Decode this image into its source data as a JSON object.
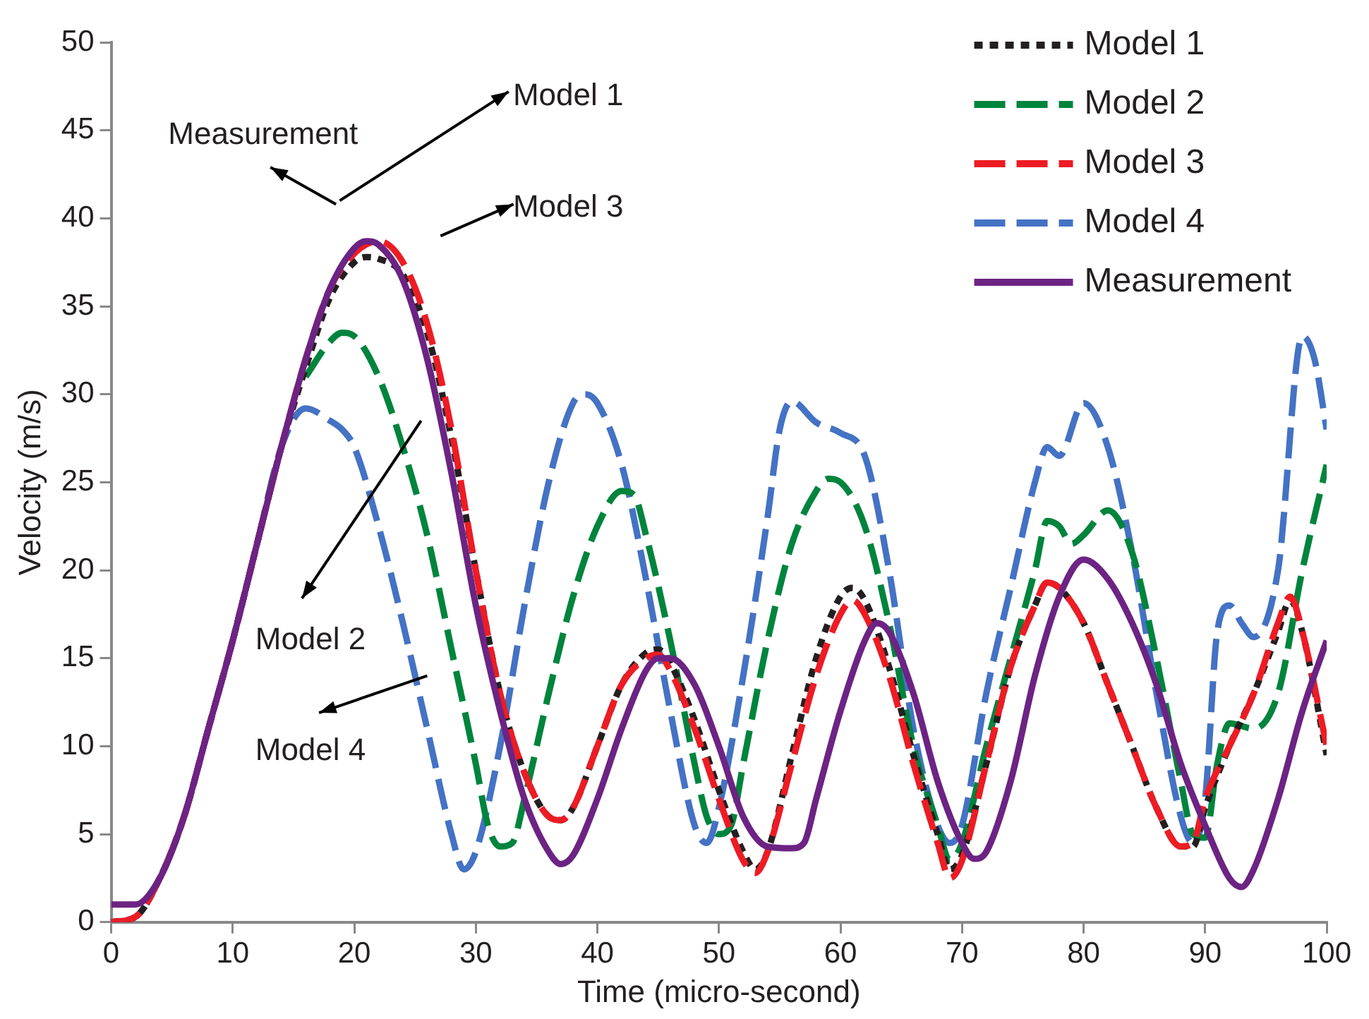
{
  "chart_data": {
    "type": "line",
    "xlabel": "Time (micro-second)",
    "ylabel": "Velocity (m/s)",
    "xlim": [
      0,
      100
    ],
    "xticks": [
      0,
      10,
      20,
      30,
      40,
      50,
      60,
      70,
      80,
      90,
      100
    ],
    "ylim": [
      0,
      50
    ],
    "yticks": [
      0,
      5,
      10,
      15,
      20,
      25,
      30,
      35,
      40,
      45,
      50
    ],
    "grid": false,
    "legend": "top right",
    "marker": "none",
    "series": [
      {
        "name": "Model 1",
        "color": "#231f20",
        "line_style": "dotted",
        "x": [
          0,
          2,
          4,
          6,
          8,
          10,
          12,
          14,
          16,
          18,
          20,
          21,
          22,
          24,
          26,
          28,
          30,
          32,
          34,
          36,
          37,
          38,
          40,
          42,
          44,
          45,
          46,
          48,
          50,
          52,
          53,
          54,
          56,
          58,
          60,
          61,
          62,
          64,
          66,
          68,
          69,
          70,
          72,
          74,
          76,
          77,
          78,
          80,
          82,
          84,
          86,
          88,
          89,
          90,
          92,
          94,
          96,
          97,
          98,
          100
        ],
        "values": [
          0,
          0.3,
          2.5,
          6,
          11,
          16,
          21.5,
          27,
          31.5,
          35.5,
          37.5,
          37.8,
          37.7,
          36.8,
          33.5,
          27.5,
          20,
          13,
          8.5,
          6,
          5.8,
          6.5,
          10,
          13.5,
          15.3,
          15.5,
          14.7,
          11.5,
          7.5,
          4,
          3,
          4,
          9.5,
          15,
          18.5,
          19,
          18.3,
          14.5,
          9.5,
          5,
          3,
          3.8,
          9,
          14.5,
          18,
          19.3,
          19,
          17,
          13.5,
          10,
          6.5,
          4.3,
          4.3,
          6.5,
          10,
          13,
          16.5,
          18.3,
          16.5,
          9.5
        ]
      },
      {
        "name": "Model 2",
        "color": "#00843d",
        "line_style": "dashed",
        "x": [
          16,
          18,
          19,
          20,
          22,
          24,
          26,
          28,
          30,
          31,
          32,
          33,
          34,
          36,
          38,
          40,
          42,
          43,
          44,
          46,
          48,
          49,
          50,
          51,
          52,
          54,
          56,
          58,
          59,
          60,
          62,
          64,
          66,
          68,
          69,
          70,
          72,
          74,
          76,
          77,
          78,
          79,
          80,
          82,
          84,
          86,
          88,
          89,
          90,
          91,
          92,
          94,
          96,
          98,
          100
        ],
        "values": [
          31,
          33,
          33.5,
          33.3,
          31,
          27,
          22,
          15.5,
          9,
          5.5,
          4.3,
          4.5,
          7,
          13,
          18.5,
          22.5,
          24.5,
          24.3,
          22,
          16,
          9,
          6,
          5,
          5.5,
          9,
          16,
          21.5,
          24.5,
          25.2,
          25,
          22.5,
          17,
          10,
          5.5,
          3.5,
          4.5,
          10,
          15,
          20,
          22.8,
          22.5,
          21.5,
          22,
          23.4,
          21,
          15,
          8,
          5,
          4.8,
          9,
          11.3,
          11,
          13,
          20,
          26
        ]
      },
      {
        "name": "Model 3",
        "color": "#ed1c24",
        "line_style": "dashed",
        "x": [
          0,
          2,
          4,
          6,
          8,
          10,
          12,
          14,
          16,
          18,
          20,
          22,
          24,
          26,
          28,
          30,
          32,
          34,
          36,
          37,
          38,
          40,
          42,
          44,
          45,
          46,
          48,
          50,
          52,
          53,
          54,
          56,
          58,
          60,
          61,
          62,
          64,
          66,
          68,
          69,
          70,
          72,
          74,
          76,
          77,
          78,
          80,
          82,
          84,
          86,
          88,
          89,
          90,
          92,
          94,
          96,
          97,
          98,
          100
        ],
        "values": [
          0,
          0.3,
          2.5,
          6,
          11,
          16,
          21.5,
          27,
          32,
          36,
          38,
          38.7,
          37.5,
          34,
          28,
          20,
          13,
          8.5,
          6,
          5.8,
          6.5,
          10,
          13.5,
          15,
          15.2,
          14.3,
          11,
          7,
          3.5,
          2.8,
          4,
          9,
          14,
          17.5,
          18.3,
          17.5,
          14,
          9,
          4.5,
          2.5,
          3.5,
          9,
          14.5,
          18,
          19.3,
          19,
          17,
          13.5,
          10,
          6.5,
          4.3,
          4.5,
          7,
          10,
          13,
          17,
          18.5,
          16.5,
          10
        ]
      },
      {
        "name": "Model 4",
        "color": "#4472c4",
        "line_style": "dashed",
        "x": [
          0,
          2,
          4,
          6,
          8,
          10,
          12,
          14,
          16,
          18,
          19,
          20,
          22,
          24,
          26,
          28,
          29,
          30,
          32,
          34,
          36,
          38,
          39,
          40,
          42,
          44,
          46,
          48,
          49,
          50,
          52,
          54,
          55,
          56,
          58,
          60,
          62,
          64,
          66,
          68,
          69,
          70,
          72,
          74,
          76,
          77,
          78,
          80,
          82,
          84,
          86,
          88,
          89,
          90,
          91,
          92,
          93,
          94,
          96,
          98,
          99,
          100
        ],
        "values": [
          0,
          0.3,
          2.5,
          6,
          11,
          16,
          21.5,
          27,
          29.2,
          28.5,
          28,
          27,
          22.5,
          17,
          11,
          5,
          3,
          4,
          10,
          18,
          25,
          29.5,
          30,
          29.5,
          26,
          19.5,
          12,
          5.5,
          4.5,
          6.5,
          14,
          23,
          28,
          29.6,
          28.4,
          27.8,
          26.5,
          20,
          11,
          5.5,
          4.5,
          5.5,
          13,
          19,
          25,
          27,
          26.5,
          29.5,
          27,
          21,
          13,
          6,
          4.5,
          7,
          16.5,
          18,
          17,
          16.2,
          20,
          33.3,
          32,
          28
        ]
      },
      {
        "name": "Measurement",
        "color": "#6c2383",
        "line_style": "solid",
        "x": [
          0,
          2,
          4,
          6,
          8,
          10,
          12,
          14,
          16,
          18,
          20,
          21,
          22,
          24,
          26,
          28,
          30,
          32,
          34,
          36,
          37,
          38,
          40,
          42,
          44,
          45,
          46,
          48,
          50,
          52,
          54,
          56,
          57,
          58,
          60,
          62,
          63,
          64,
          66,
          68,
          70,
          71,
          72,
          74,
          76,
          78,
          80,
          82,
          84,
          86,
          88,
          90,
          92,
          93,
          94,
          96,
          98,
          100
        ],
        "values": [
          1,
          1,
          2.5,
          6,
          11,
          16,
          21.5,
          27,
          32,
          36,
          38.3,
          38.7,
          38.5,
          36.5,
          32,
          25.5,
          18,
          12,
          7,
          4,
          3.3,
          3.8,
          7,
          11,
          14.3,
          15,
          15,
          13.5,
          10,
          6,
          4.3,
          4.2,
          4.5,
          7,
          12,
          16,
          17,
          16.5,
          13,
          8,
          4.5,
          3.6,
          4,
          8,
          14,
          18.5,
          20.6,
          19.5,
          17,
          13.5,
          9,
          5.5,
          2.5,
          2,
          3,
          7,
          12,
          16
        ]
      }
    ],
    "annotations": [
      "Measurement",
      "Model 1",
      "Model 3",
      "Model 2",
      "Model 4"
    ]
  }
}
